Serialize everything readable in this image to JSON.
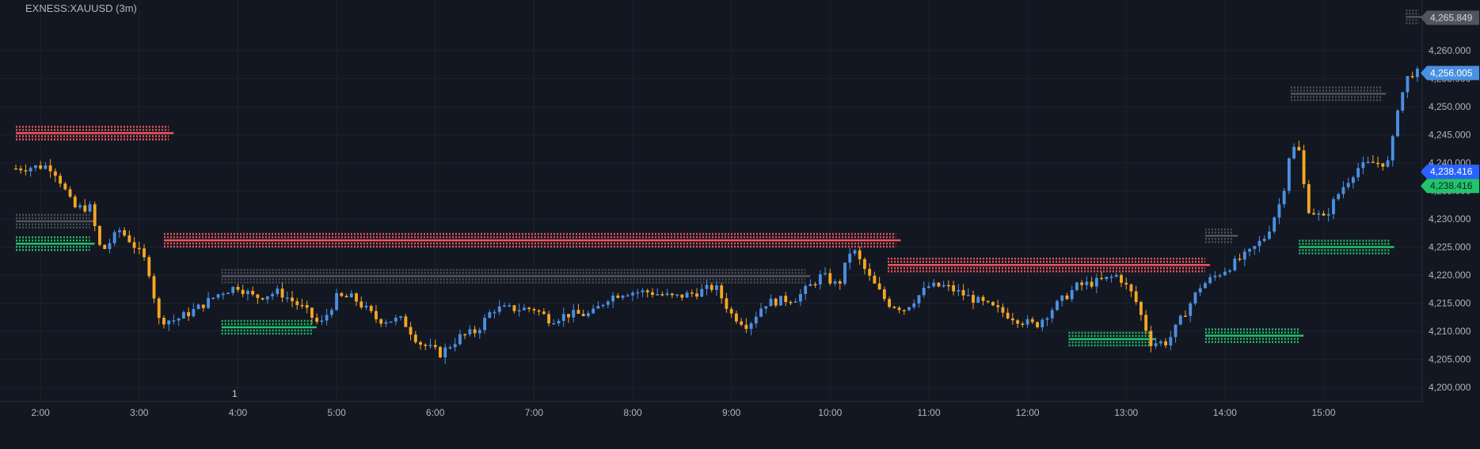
{
  "header": {
    "symbol": "EXNESS:XAUUSD (3m)"
  },
  "marker": {
    "label": "1"
  },
  "colors": {
    "background": "#131722",
    "up": "#4a90e2",
    "down": "#f5a623",
    "supply": "#f0565c",
    "demand": "#22c36b",
    "neutral": "#51545c",
    "grid": "#1e222d",
    "axis_text": "#b2b5be"
  },
  "chart_data": {
    "type": "candlestick",
    "x_ticks": [
      "2:00",
      "3:00",
      "4:00",
      "5:00",
      "6:00",
      "7:00",
      "8:00",
      "9:00",
      "10:00",
      "11:00",
      "12:00",
      "13:00",
      "14:00",
      "15:00"
    ],
    "y_ticks": [
      "4,200.000",
      "4,205.000",
      "4,210.000",
      "4,215.000",
      "4,220.000",
      "4,225.000",
      "4,230.000",
      "4,235.000",
      "4,240.000",
      "4,245.000",
      "4,250.000",
      "4,255.000",
      "4,260.000"
    ],
    "ylim": [
      4198,
      4268
    ],
    "price_labels": [
      {
        "text": "4,265.849",
        "value": 4265.849,
        "bg": "#51545c",
        "color": "#d1d4dc"
      },
      {
        "text": "4,256.005",
        "value": 4256.005,
        "bg": "#4a90e2",
        "color": "#ffffff"
      },
      {
        "text": "4,238.416",
        "value": 4238.416,
        "bg": "#2962ff",
        "color": "#ffffff"
      },
      {
        "text": "4,238.416",
        "value": 4238.416,
        "bg": "#22c36b",
        "color": "#0b2b18",
        "offset": 1
      }
    ],
    "zones": [
      {
        "kind": "supply",
        "from": "1:45",
        "to": "3:18",
        "value": 4245.3
      },
      {
        "kind": "supply",
        "from": "3:15",
        "to": "10:40",
        "value": 4226.2
      },
      {
        "kind": "supply",
        "from": "10:35",
        "to": "13:48",
        "value": 4221.8
      },
      {
        "kind": "demand",
        "from": "1:45",
        "to": "2:30",
        "value": 4225.6
      },
      {
        "kind": "demand",
        "from": "3:50",
        "to": "4:45",
        "value": 4210.7
      },
      {
        "kind": "demand",
        "from": "12:25",
        "to": "13:15",
        "value": 4208.6
      },
      {
        "kind": "demand",
        "from": "13:48",
        "to": "14:45",
        "value": 4209.2
      },
      {
        "kind": "demand",
        "from": "14:45",
        "to": "15:40",
        "value": 4225.0
      },
      {
        "kind": "neutral",
        "from": "1:45",
        "to": "2:30",
        "value": 4229.6
      },
      {
        "kind": "neutral",
        "from": "3:50",
        "to": "9:45",
        "value": 4219.8
      },
      {
        "kind": "neutral",
        "from": "13:48",
        "to": "14:05",
        "value": 4227.0
      },
      {
        "kind": "neutral",
        "from": "14:40",
        "to": "15:35",
        "value": 4252.3
      },
      {
        "kind": "neutral",
        "from": "15:50",
        "to": "15:58",
        "value": 4266.0
      }
    ],
    "marker_time": "3:58",
    "anchors": [
      [
        "1:45",
        4239
      ],
      [
        "2:05",
        4239.5
      ],
      [
        "2:10",
        4238
      ],
      [
        "2:20",
        4232
      ],
      [
        "2:30",
        4232
      ],
      [
        "2:37",
        4224
      ],
      [
        "2:48",
        4228
      ],
      [
        "2:55",
        4226
      ],
      [
        "3:05",
        4222
      ],
      [
        "3:12",
        4212
      ],
      [
        "3:22",
        4212
      ],
      [
        "3:35",
        4214
      ],
      [
        "3:50",
        4217
      ],
      [
        "4:00",
        4218
      ],
      [
        "4:10",
        4216
      ],
      [
        "4:25",
        4217
      ],
      [
        "4:40",
        4214
      ],
      [
        "4:50",
        4211
      ],
      [
        "5:00",
        4216
      ],
      [
        "5:10",
        4216
      ],
      [
        "5:25",
        4212
      ],
      [
        "5:40",
        4212
      ],
      [
        "5:50",
        4208
      ],
      [
        "6:03",
        4206
      ],
      [
        "6:15",
        4209
      ],
      [
        "6:25",
        4210
      ],
      [
        "6:35",
        4214
      ],
      [
        "6:50",
        4214
      ],
      [
        "7:00",
        4214
      ],
      [
        "7:10",
        4212
      ],
      [
        "7:20",
        4213
      ],
      [
        "7:35",
        4213
      ],
      [
        "7:45",
        4216
      ],
      [
        "7:55",
        4217
      ],
      [
        "8:10",
        4217
      ],
      [
        "8:25",
        4216
      ],
      [
        "8:40",
        4217
      ],
      [
        "8:50",
        4218
      ],
      [
        "9:00",
        4213
      ],
      [
        "9:10",
        4211
      ],
      [
        "9:20",
        4215
      ],
      [
        "9:40",
        4216
      ],
      [
        "9:55",
        4220
      ],
      [
        "10:05",
        4218
      ],
      [
        "10:13",
        4225
      ],
      [
        "10:25",
        4219
      ],
      [
        "10:35",
        4215
      ],
      [
        "10:45",
        4214
      ],
      [
        "11:00",
        4218
      ],
      [
        "11:10",
        4218
      ],
      [
        "11:25",
        4216
      ],
      [
        "11:40",
        4214
      ],
      [
        "11:55",
        4212
      ],
      [
        "12:05",
        4211
      ],
      [
        "12:15",
        4214
      ],
      [
        "12:30",
        4218
      ],
      [
        "12:45",
        4219
      ],
      [
        "12:55",
        4220
      ],
      [
        "13:05",
        4216
      ],
      [
        "13:15",
        4208
      ],
      [
        "13:25",
        4208
      ],
      [
        "13:35",
        4213
      ],
      [
        "13:45",
        4218
      ],
      [
        "14:00",
        4221
      ],
      [
        "14:05",
        4222
      ],
      [
        "14:15",
        4224
      ],
      [
        "14:25",
        4227
      ],
      [
        "14:35",
        4234
      ],
      [
        "14:40",
        4243
      ],
      [
        "14:45",
        4242
      ],
      [
        "14:50",
        4232
      ],
      [
        "15:00",
        4230
      ],
      [
        "15:10",
        4235
      ],
      [
        "15:20",
        4239
      ],
      [
        "15:30",
        4240
      ],
      [
        "15:40",
        4240
      ],
      [
        "15:45",
        4250
      ],
      [
        "15:52",
        4256
      ],
      [
        "15:58",
        4256
      ]
    ]
  }
}
